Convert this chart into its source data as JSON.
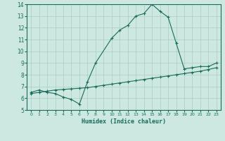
{
  "xlabel": "Humidex (Indice chaleur)",
  "bg_color": "#cce8e0",
  "grid_color": "#aaccc4",
  "line_color": "#1a6b5a",
  "xlim": [
    -0.5,
    23.5
  ],
  "ylim": [
    5,
    14
  ],
  "xticks": [
    0,
    1,
    2,
    3,
    4,
    5,
    6,
    7,
    8,
    9,
    10,
    11,
    12,
    13,
    14,
    15,
    16,
    17,
    18,
    19,
    20,
    21,
    22,
    23
  ],
  "yticks": [
    5,
    6,
    7,
    8,
    9,
    10,
    11,
    12,
    13,
    14
  ],
  "line1_x": [
    0,
    1,
    2,
    3,
    4,
    5,
    6,
    7,
    8,
    10,
    11,
    12,
    13,
    14,
    15,
    16,
    17,
    18,
    19,
    20,
    21,
    22,
    23
  ],
  "line1_y": [
    6.5,
    6.7,
    6.5,
    6.4,
    6.1,
    5.9,
    5.5,
    7.4,
    9.0,
    11.1,
    11.8,
    12.2,
    13.0,
    13.2,
    14.0,
    13.4,
    12.9,
    10.7,
    8.5,
    8.6,
    8.7,
    8.7,
    9.0
  ],
  "line2_x": [
    0,
    1,
    2,
    3,
    4,
    5,
    6,
    7,
    8,
    9,
    10,
    11,
    12,
    13,
    14,
    15,
    16,
    17,
    18,
    19,
    20,
    21,
    22,
    23
  ],
  "line2_y": [
    6.4,
    6.5,
    6.6,
    6.7,
    6.75,
    6.8,
    6.85,
    6.9,
    7.0,
    7.1,
    7.2,
    7.3,
    7.4,
    7.5,
    7.6,
    7.7,
    7.8,
    7.9,
    8.0,
    8.1,
    8.2,
    8.3,
    8.45,
    8.6
  ]
}
